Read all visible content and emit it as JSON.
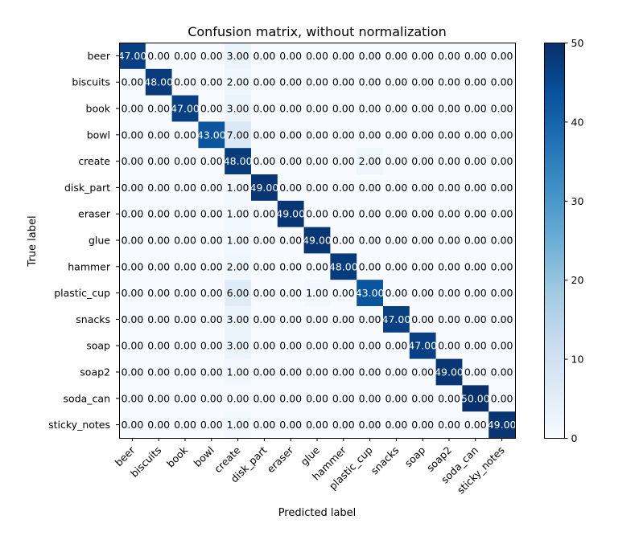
{
  "chart_data": {
    "type": "heatmap",
    "title": "Confusion matrix, without normalization",
    "xlabel": "Predicted label",
    "ylabel": "True label",
    "x_categories": [
      "beer",
      "biscuits",
      "book",
      "bowl",
      "create",
      "disk_part",
      "eraser",
      "glue",
      "hammer",
      "plastic_cup",
      "snacks",
      "soap",
      "soap2",
      "soda_can",
      "sticky_notes"
    ],
    "y_categories": [
      "beer",
      "biscuits",
      "book",
      "bowl",
      "create",
      "disk_part",
      "eraser",
      "glue",
      "hammer",
      "plastic_cup",
      "snacks",
      "soap",
      "soap2",
      "soda_can",
      "sticky_notes"
    ],
    "values": [
      [
        47,
        0,
        0,
        0,
        3,
        0,
        0,
        0,
        0,
        0,
        0,
        0,
        0,
        0,
        0
      ],
      [
        0,
        48,
        0,
        0,
        2,
        0,
        0,
        0,
        0,
        0,
        0,
        0,
        0,
        0,
        0
      ],
      [
        0,
        0,
        47,
        0,
        3,
        0,
        0,
        0,
        0,
        0,
        0,
        0,
        0,
        0,
        0
      ],
      [
        0,
        0,
        0,
        43,
        7,
        0,
        0,
        0,
        0,
        0,
        0,
        0,
        0,
        0,
        0
      ],
      [
        0,
        0,
        0,
        0,
        48,
        0,
        0,
        0,
        0,
        2,
        0,
        0,
        0,
        0,
        0
      ],
      [
        0,
        0,
        0,
        0,
        1,
        49,
        0,
        0,
        0,
        0,
        0,
        0,
        0,
        0,
        0
      ],
      [
        0,
        0,
        0,
        0,
        1,
        0,
        49,
        0,
        0,
        0,
        0,
        0,
        0,
        0,
        0
      ],
      [
        0,
        0,
        0,
        0,
        1,
        0,
        0,
        49,
        0,
        0,
        0,
        0,
        0,
        0,
        0
      ],
      [
        0,
        0,
        0,
        0,
        2,
        0,
        0,
        0,
        48,
        0,
        0,
        0,
        0,
        0,
        0
      ],
      [
        0,
        0,
        0,
        0,
        6,
        0,
        0,
        1,
        0,
        43,
        0,
        0,
        0,
        0,
        0
      ],
      [
        0,
        0,
        0,
        0,
        3,
        0,
        0,
        0,
        0,
        0,
        47,
        0,
        0,
        0,
        0
      ],
      [
        0,
        0,
        0,
        0,
        3,
        0,
        0,
        0,
        0,
        0,
        0,
        47,
        0,
        0,
        0
      ],
      [
        0,
        0,
        0,
        0,
        1,
        0,
        0,
        0,
        0,
        0,
        0,
        0,
        49,
        0,
        0
      ],
      [
        0,
        0,
        0,
        0,
        0,
        0,
        0,
        0,
        0,
        0,
        0,
        0,
        0,
        50,
        0
      ],
      [
        0,
        0,
        0,
        0,
        1,
        0,
        0,
        0,
        0,
        0,
        0,
        0,
        0,
        0,
        49
      ]
    ],
    "value_format_decimals": 2,
    "colormap": "Blues",
    "colorbar": {
      "range": [
        0,
        50
      ],
      "ticks": [
        0,
        10,
        20,
        30,
        40,
        50
      ]
    },
    "colors": {
      "low": "#f7fbff",
      "high": "#08306b",
      "text_dark": "#000000",
      "text_light": "#ffffff"
    }
  }
}
